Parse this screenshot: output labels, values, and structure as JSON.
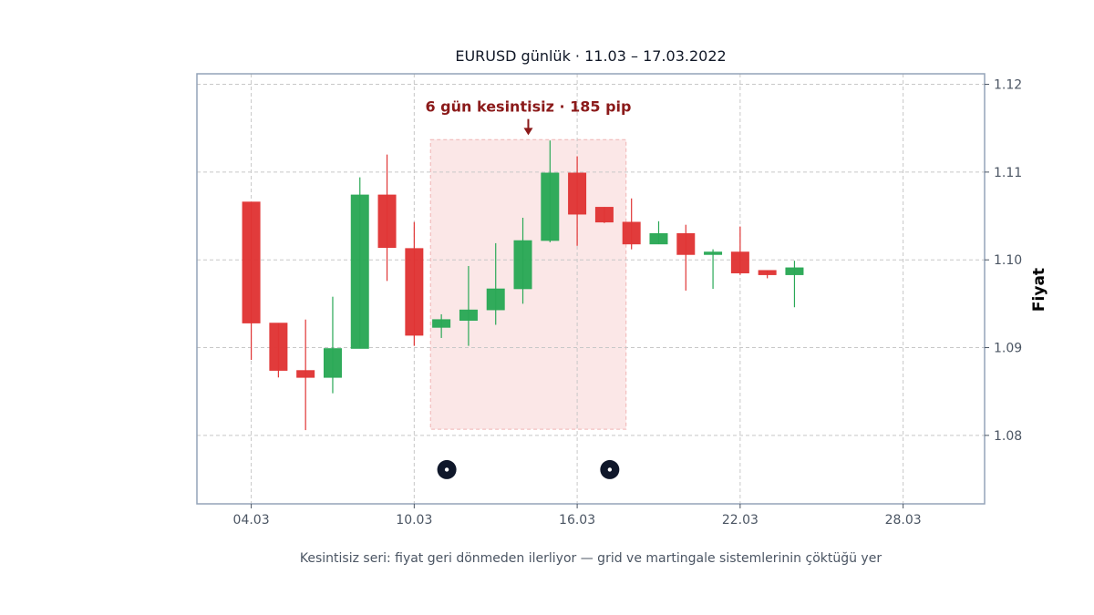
{
  "chart_data": {
    "type": "candlestick",
    "title": "EURUSD günlük · 11.03 – 17.03.2022",
    "ylabel": "Fiyat",
    "xlabel": "",
    "caption": "Kesintisiz seri: fiyat geri dönmeden ilerliyor — grid ve martingale sistemlerinin çöktüğü yer",
    "ylim": [
      1.0722,
      1.1212
    ],
    "xlim": [
      2.0,
      31.0
    ],
    "grid": true,
    "yticks": [
      1.08,
      1.09,
      1.1,
      1.11,
      1.12
    ],
    "ytick_labels": [
      "1.08",
      "1.09",
      "1.10",
      "1.11",
      "1.12"
    ],
    "xticks": [
      4,
      10,
      16,
      22,
      28
    ],
    "xtick_labels": [
      "04.03",
      "10.03",
      "16.03",
      "22.03",
      "28.03"
    ],
    "colors": {
      "up": "#2aa856",
      "down": "#e03535",
      "highlight": "#f8d4d4",
      "annotation": "#8b1a1a",
      "marker": "#0f172a",
      "frame": "#94a3b8"
    },
    "candles": [
      {
        "x": 4,
        "open": 1.1066,
        "high": 1.1066,
        "low": 1.0886,
        "close": 1.0928
      },
      {
        "x": 5,
        "open": 1.0928,
        "high": 1.0928,
        "low": 1.0866,
        "close": 1.0874
      },
      {
        "x": 6,
        "open": 1.0874,
        "high": 1.0932,
        "low": 1.0806,
        "close": 1.0866
      },
      {
        "x": 7,
        "open": 1.0866,
        "high": 1.0958,
        "low": 1.0848,
        "close": 1.0899
      },
      {
        "x": 8,
        "open": 1.0899,
        "high": 1.1094,
        "low": 1.0899,
        "close": 1.1074
      },
      {
        "x": 9,
        "open": 1.1074,
        "high": 1.112,
        "low": 1.0976,
        "close": 1.1014
      },
      {
        "x": 10,
        "open": 1.1013,
        "high": 1.1043,
        "low": 1.0902,
        "close": 1.0914
      },
      {
        "x": 11,
        "open": 1.0923,
        "high": 1.0938,
        "low": 1.0911,
        "close": 1.0932
      },
      {
        "x": 12,
        "open": 1.0931,
        "high": 1.0993,
        "low": 1.0902,
        "close": 1.0943
      },
      {
        "x": 13,
        "open": 1.0943,
        "high": 1.1019,
        "low": 1.0926,
        "close": 1.0967
      },
      {
        "x": 14,
        "open": 1.0967,
        "high": 1.1048,
        "low": 1.095,
        "close": 1.1022
      },
      {
        "x": 15,
        "open": 1.1022,
        "high": 1.1136,
        "low": 1.102,
        "close": 1.1099
      },
      {
        "x": 16,
        "open": 1.1099,
        "high": 1.1118,
        "low": 1.1016,
        "close": 1.1052
      },
      {
        "x": 17,
        "open": 1.106,
        "high": 1.106,
        "low": 1.1042,
        "close": 1.1043
      },
      {
        "x": 18,
        "open": 1.1043,
        "high": 1.107,
        "low": 1.1012,
        "close": 1.1018
      },
      {
        "x": 19,
        "open": 1.1018,
        "high": 1.1044,
        "low": 1.1018,
        "close": 1.103
      },
      {
        "x": 20,
        "open": 1.103,
        "high": 1.104,
        "low": 1.0965,
        "close": 1.1006
      },
      {
        "x": 21,
        "open": 1.1006,
        "high": 1.1012,
        "low": 1.0967,
        "close": 1.1009
      },
      {
        "x": 22,
        "open": 1.1009,
        "high": 1.1038,
        "low": 1.0983,
        "close": 1.0985
      },
      {
        "x": 23,
        "open": 1.0988,
        "high": 1.0988,
        "low": 1.0979,
        "close": 1.0983
      },
      {
        "x": 24,
        "open": 1.0983,
        "high": 1.0999,
        "low": 1.0946,
        "close": 1.0991
      }
    ],
    "highlight": {
      "x_start": 10.6,
      "x_end": 17.8,
      "y_start": 1.0807,
      "y_end": 1.1137
    },
    "annotation": {
      "text": "6 gün kesintisiz · 185 pip",
      "x": 14.2,
      "y": 1.1175,
      "arrow_to": [
        14.2,
        1.1142
      ]
    },
    "markers": [
      {
        "x": 11.2,
        "y": 1.0761
      },
      {
        "x": 17.2,
        "y": 1.0761
      }
    ]
  }
}
